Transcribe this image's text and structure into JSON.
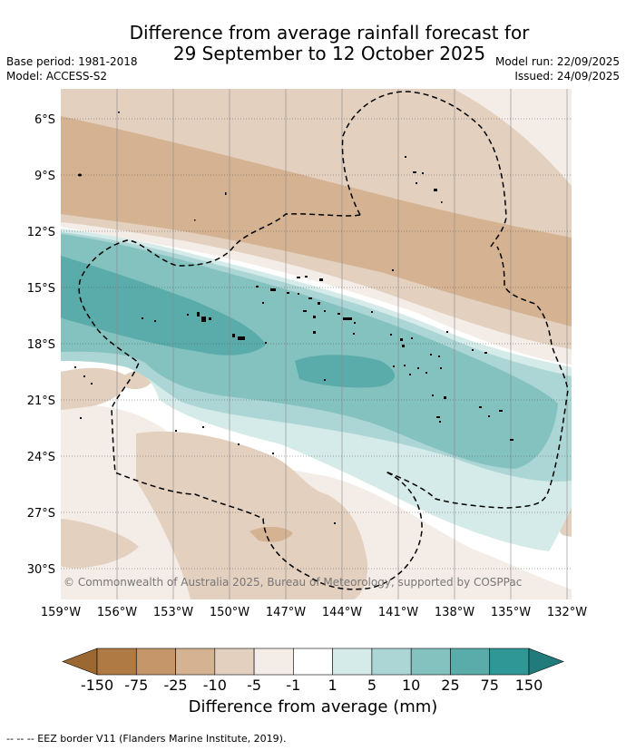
{
  "header": {
    "title_line1": "Difference from average rainfall forecast for",
    "title_line2": "29 September to 12 October 2025",
    "base_period": "Base period: 1981-2018",
    "model": "Model: ACCESS-S2",
    "model_run": "Model run: 22/09/2025",
    "issued": "Issued: 24/09/2025"
  },
  "map": {
    "lat_labels": [
      "6°S",
      "9°S",
      "12°S",
      "15°S",
      "18°S",
      "21°S",
      "24°S",
      "27°S",
      "30°S"
    ],
    "lon_labels": [
      "159°W",
      "156°W",
      "153°W",
      "150°W",
      "147°W",
      "144°W",
      "141°W",
      "138°W",
      "135°W",
      "132°W"
    ],
    "copyright": "© Commonwealth of Australia 2025, Bureau of Meteorology, supported by COSPPac"
  },
  "legend": {
    "title": "Difference from average (mm)",
    "tick_labels": [
      "-150",
      "-75",
      "-25",
      "-10",
      "-5",
      "-1",
      "1",
      "5",
      "10",
      "25",
      "75",
      "150"
    ],
    "colors": [
      "#9a6830",
      "#b07a44",
      "#c4966a",
      "#d5b392",
      "#e3d0bf",
      "#f4ece6",
      "#ffffff",
      "#d5ebe9",
      "#acd6d5",
      "#84c2c0",
      "#5aacab",
      "#2f9896",
      "#207b7a"
    ]
  },
  "footer": {
    "text": "--  --  -- EEZ border V11 (Flanders Marine Institute, 2019)."
  }
}
